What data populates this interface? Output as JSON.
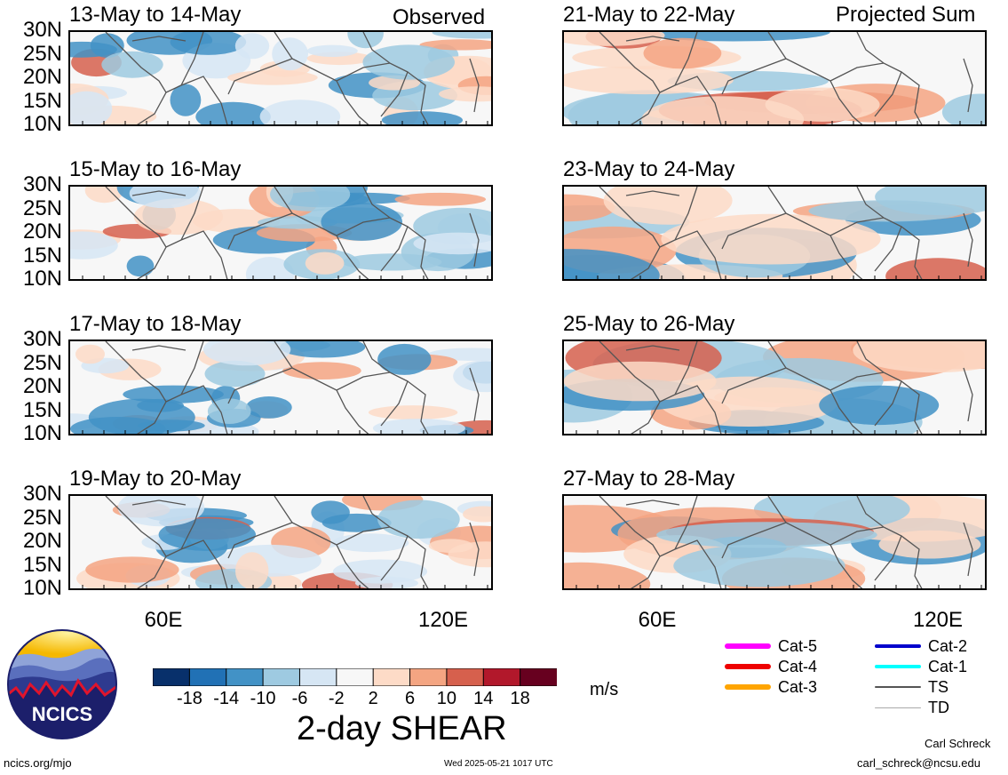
{
  "header": {
    "observed_label": "Observed",
    "projected_label": "Projected Sum"
  },
  "panels": [
    {
      "title": "13-May to 14-May",
      "column": "observed"
    },
    {
      "title": "15-May to 16-May",
      "column": "observed"
    },
    {
      "title": "17-May to 18-May",
      "column": "observed"
    },
    {
      "title": "19-May to 20-May",
      "column": "observed"
    },
    {
      "title": "21-May to 22-May",
      "column": "projected"
    },
    {
      "title": "23-May to 24-May",
      "column": "projected"
    },
    {
      "title": "25-May to 26-May",
      "column": "projected"
    },
    {
      "title": "27-May to 28-May",
      "column": "projected"
    }
  ],
  "lat_labels": [
    "30N",
    "25N",
    "20N",
    "15N",
    "10N"
  ],
  "lon_labels": [
    "60E",
    "120E"
  ],
  "colorbar": {
    "ticks": [
      "-18",
      "-14",
      "-10",
      "-6",
      "-2",
      "2",
      "6",
      "10",
      "14",
      "18"
    ],
    "colors": [
      "#08306b",
      "#2171b5",
      "#4292c6",
      "#9ecae1",
      "#d6e6f4",
      "#f7f7f7",
      "#fddbc7",
      "#f4a582",
      "#d6604d",
      "#b2182b",
      "#67001f"
    ],
    "units": "m/s",
    "title": "2-day SHEAR"
  },
  "legend": [
    {
      "label": "Cat-5",
      "color": "#ff00ff"
    },
    {
      "label": "Cat-4",
      "color": "#ee0000"
    },
    {
      "label": "Cat-3",
      "color": "#ffa500"
    },
    {
      "label": "Cat-2",
      "color": "#0000cc"
    },
    {
      "label": "Cat-1",
      "color": "#00ffff"
    },
    {
      "label": "TS",
      "color": "#555555"
    },
    {
      "label": "TD",
      "color": "#aaaaaa"
    }
  ],
  "logo": {
    "text": "NCICS"
  },
  "footer": {
    "url": "ncics.org/mjo",
    "timestamp": "Wed 2025-05-21 1017 UTC",
    "author": "Carl Schreck",
    "email": "carl_schreck@ncsu.edu"
  }
}
